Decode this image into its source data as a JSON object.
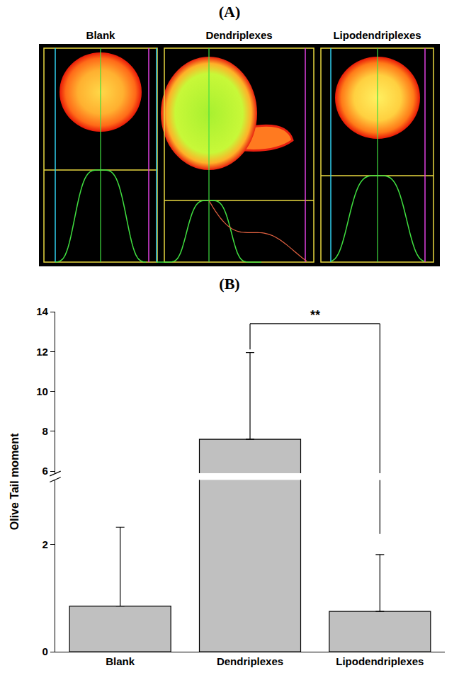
{
  "figure": {
    "panels": [
      "(A)",
      "(B)"
    ],
    "comet_labels": [
      "Blank",
      "Dendriplexes",
      "Lipodendriplexes"
    ]
  },
  "chart_data": {
    "type": "bar",
    "categories": [
      "Blank",
      "Dendriplexes",
      "Lipodendriplexes"
    ],
    "values": [
      0.85,
      7.6,
      0.75
    ],
    "errors": [
      1.47,
      4.35,
      1.06
    ],
    "color": "#c0c0c0",
    "y_label": "Olive Tail moment",
    "ylim": [
      0,
      14
    ],
    "yticks": [
      0,
      2,
      6,
      8,
      10,
      12,
      14
    ],
    "y_break": [
      3.2,
      5.9
    ],
    "grid": false,
    "annotations": [
      {
        "from": "Dendriplexes",
        "to": "Lipodendriplexes",
        "text": "**",
        "y": 13.4
      }
    ]
  }
}
